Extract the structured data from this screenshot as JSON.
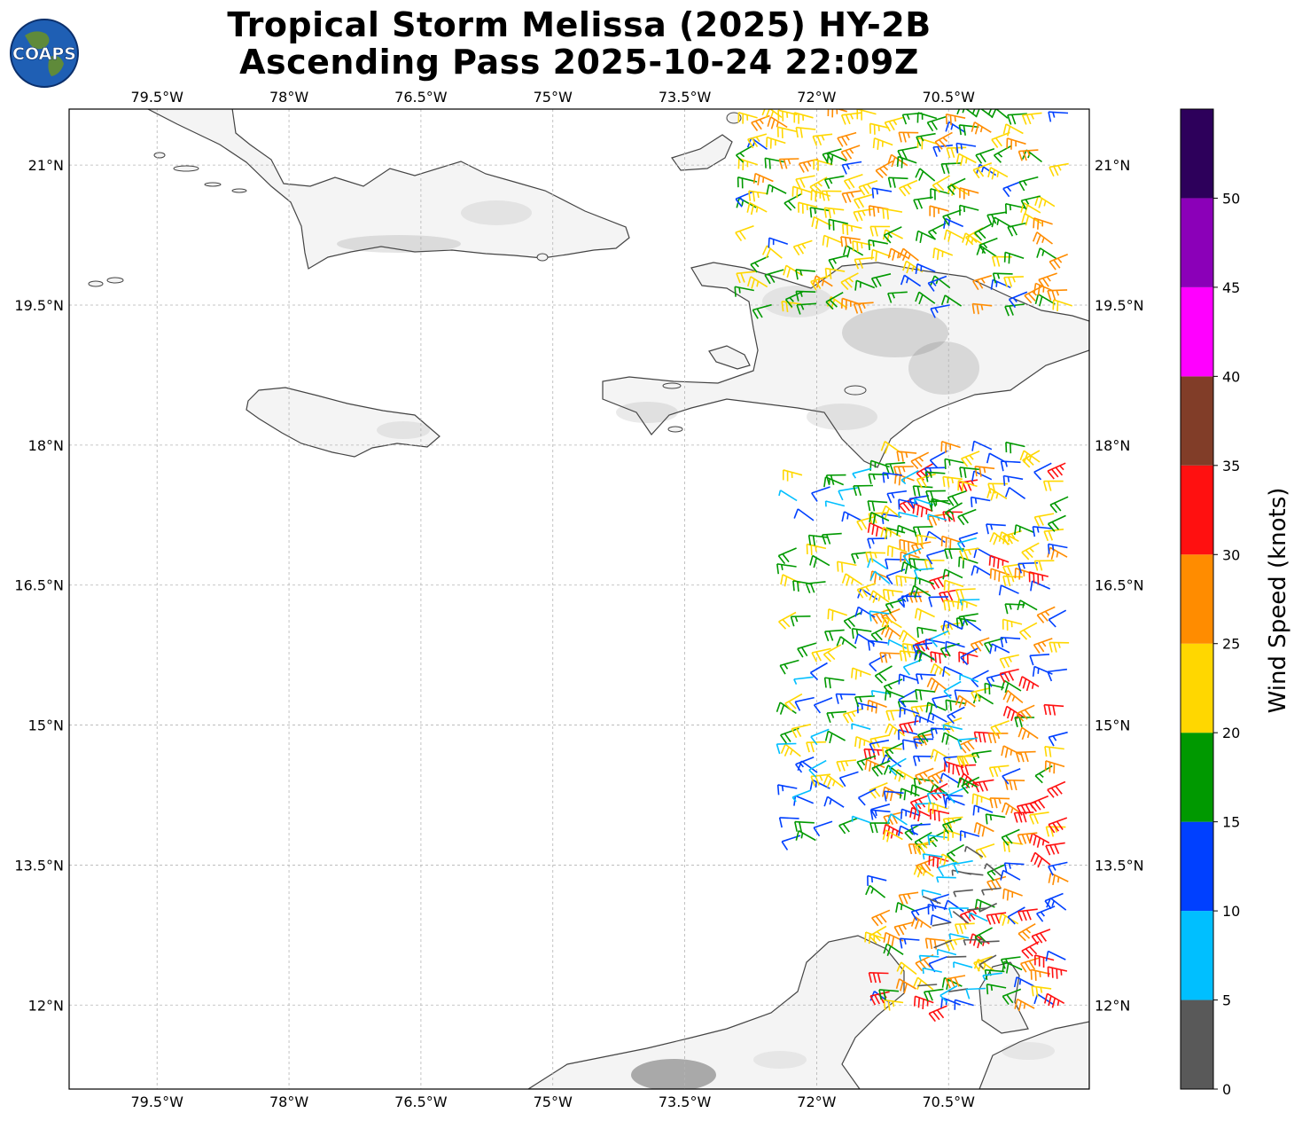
{
  "title": {
    "line1": "Tropical Storm Melissa (2025) HY-2B",
    "line2": "Ascending Pass 2025-10-24 22:09Z"
  },
  "logo": {
    "text": "COAPS",
    "icon": "globe-logo-icon"
  },
  "map": {
    "lon_range": [
      -80.5,
      -68.9
    ],
    "lat_range": [
      11.1,
      21.6
    ],
    "lon_ticks": [
      {
        "value": -79.5,
        "label": "79.5°W"
      },
      {
        "value": -78.0,
        "label": "78°W"
      },
      {
        "value": -76.5,
        "label": "76.5°W"
      },
      {
        "value": -75.0,
        "label": "75°W"
      },
      {
        "value": -73.5,
        "label": "73.5°W"
      },
      {
        "value": -72.0,
        "label": "72°W"
      },
      {
        "value": -70.5,
        "label": "70.5°W"
      }
    ],
    "lat_ticks": [
      {
        "value": 21.0,
        "label": "21°N"
      },
      {
        "value": 19.5,
        "label": "19.5°N"
      },
      {
        "value": 18.0,
        "label": "18°N"
      },
      {
        "value": 16.5,
        "label": "16.5°N"
      },
      {
        "value": 15.0,
        "label": "15°N"
      },
      {
        "value": 13.5,
        "label": "13.5°N"
      },
      {
        "value": 12.0,
        "label": "12°N"
      }
    ],
    "grid": true,
    "land_color": "#f4f4f4",
    "coast_color": "#444444"
  },
  "colorbar": {
    "label": "Wind Speed (knots)",
    "ticks": [
      "0",
      "5",
      "10",
      "15",
      "20",
      "25",
      "30",
      "35",
      "40",
      "45",
      "50"
    ],
    "bins": [
      {
        "min": 0,
        "max": 5,
        "color": "#595959"
      },
      {
        "min": 5,
        "max": 10,
        "color": "#00bfff"
      },
      {
        "min": 10,
        "max": 15,
        "color": "#0040ff"
      },
      {
        "min": 15,
        "max": 20,
        "color": "#009900"
      },
      {
        "min": 20,
        "max": 25,
        "color": "#ffd700"
      },
      {
        "min": 25,
        "max": 30,
        "color": "#ff8c00"
      },
      {
        "min": 30,
        "max": 35,
        "color": "#ff1010"
      },
      {
        "min": 35,
        "max": 40,
        "color": "#813d28"
      },
      {
        "min": 40,
        "max": 45,
        "color": "#ff00ff"
      },
      {
        "min": 45,
        "max": 50,
        "color": "#8b00b8"
      },
      {
        "min": 50,
        "max": 55,
        "color": "#2d005b"
      }
    ]
  },
  "wind_regions": [
    {
      "lon": [
        -72.7,
        -69.0
      ],
      "lat": [
        19.5,
        21.6
      ],
      "speed": [
        14,
        27
      ]
    },
    {
      "lon": [
        -71.2,
        -69.0
      ],
      "lat": [
        12.0,
        18.0
      ],
      "speed": [
        10,
        34
      ]
    },
    {
      "lon": [
        -72.2,
        -70.0
      ],
      "lat": [
        13.8,
        17.8
      ],
      "speed": [
        6,
        24
      ]
    },
    {
      "lon": [
        -70.6,
        -69.8
      ],
      "lat": [
        12.2,
        13.6
      ],
      "speed": [
        0,
        9
      ]
    }
  ]
}
